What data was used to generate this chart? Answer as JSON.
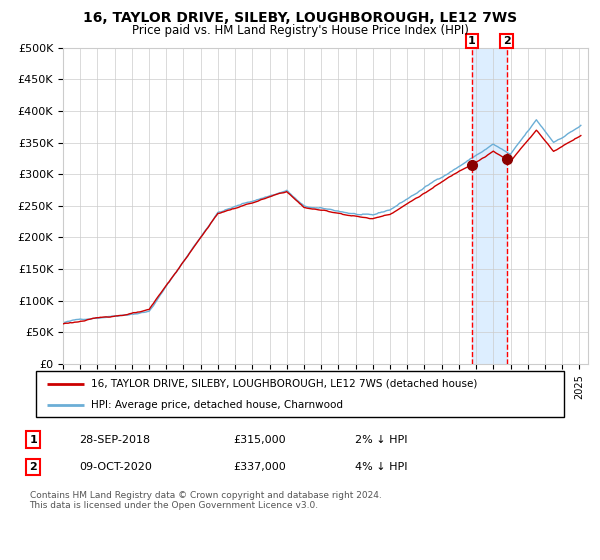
{
  "title": "16, TAYLOR DRIVE, SILEBY, LOUGHBOROUGH, LE12 7WS",
  "subtitle": "Price paid vs. HM Land Registry's House Price Index (HPI)",
  "legend_line1": "16, TAYLOR DRIVE, SILEBY, LOUGHBOROUGH, LE12 7WS (detached house)",
  "legend_line2": "HPI: Average price, detached house, Charnwood",
  "transaction1_date": "28-SEP-2018",
  "transaction1_price": 315000,
  "transaction1_pct": "2% ↓ HPI",
  "transaction2_date": "09-OCT-2020",
  "transaction2_price": 337000,
  "transaction2_pct": "4% ↓ HPI",
  "footer": "Contains HM Land Registry data © Crown copyright and database right 2024.\nThis data is licensed under the Open Government Licence v3.0.",
  "hpi_color": "#6baed6",
  "price_color": "#cc0000",
  "marker_color": "#8b0000",
  "vline_color": "#ff0000",
  "highlight_color": "#ddeeff",
  "ylim": [
    0,
    500000
  ],
  "yticks": [
    0,
    50000,
    100000,
    150000,
    200000,
    250000,
    300000,
    350000,
    400000,
    450000,
    500000
  ],
  "plot_background": "#ffffff",
  "transaction1_x": 2018.75,
  "transaction2_x": 2020.77
}
